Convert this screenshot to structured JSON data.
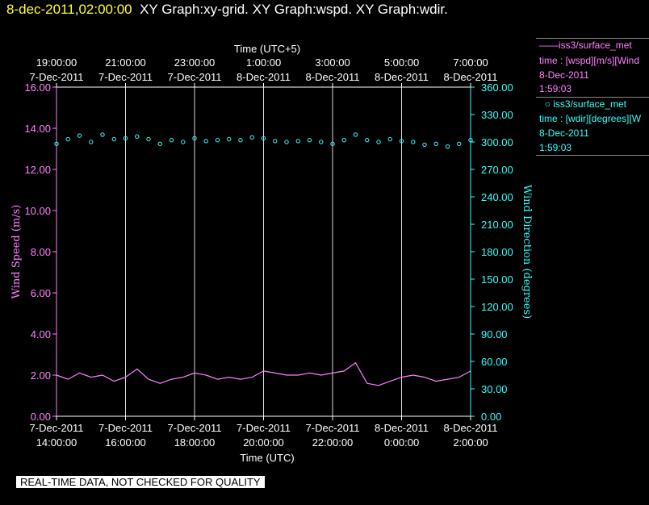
{
  "header": {
    "timestamp": "8-dec-2011,02:00:00",
    "graphs": "XY Graph:xy-grid.  XY Graph:wspd.  XY Graph:wdir."
  },
  "banner": "REAL-TIME DATA, NOT CHECKED FOR QUALITY",
  "legend": {
    "wspd": {
      "line_label": "iss3/surface_met",
      "desc": "time : [wspd][m/s][Wind",
      "date": "8-Dec-2011",
      "time": "1:59:03"
    },
    "wdir": {
      "marker_label": "iss3/surface_met",
      "desc": "time : [wdir][degrees][W",
      "date": "8-Dec-2011",
      "time": "1:59:03"
    }
  },
  "colors": {
    "wspd": "#ff80ff",
    "wdir": "#33ffff",
    "grid": "#ffffff",
    "axis_text": "#ffffff"
  },
  "chart_data": {
    "type": "line",
    "title_top_axis": "Time (UTC+5)",
    "xlabel": "Time (UTC)",
    "ylabel_left": "Wind Speed (m/s)",
    "ylabel_right": "Wind Direction (degrees)",
    "xlim": [
      "2011-12-07T14:00:00",
      "2011-12-08T02:00:00"
    ],
    "ylim_left": [
      0,
      16
    ],
    "ylim_right": [
      0,
      360
    ],
    "bottom_ticks": [
      {
        "t": "2011-12-07T14:00:00",
        "date": "7-Dec-2011",
        "time": "14:00:00"
      },
      {
        "t": "2011-12-07T16:00:00",
        "date": "7-Dec-2011",
        "time": "16:00:00"
      },
      {
        "t": "2011-12-07T18:00:00",
        "date": "7-Dec-2011",
        "time": "18:00:00"
      },
      {
        "t": "2011-12-07T20:00:00",
        "date": "7-Dec-2011",
        "time": "20:00:00"
      },
      {
        "t": "2011-12-07T22:00:00",
        "date": "7-Dec-2011",
        "time": "22:00:00"
      },
      {
        "t": "2011-12-08T00:00:00",
        "date": "8-Dec-2011",
        "time": "0:00:00"
      },
      {
        "t": "2011-12-08T02:00:00",
        "date": "8-Dec-2011",
        "time": "2:00:00"
      }
    ],
    "top_ticks": [
      {
        "t": "2011-12-07T14:00:00",
        "time": "19:00:00",
        "date": "7-Dec-2011"
      },
      {
        "t": "2011-12-07T16:00:00",
        "time": "21:00:00",
        "date": "7-Dec-2011"
      },
      {
        "t": "2011-12-07T18:00:00",
        "time": "23:00:00",
        "date": "7-Dec-2011"
      },
      {
        "t": "2011-12-07T20:00:00",
        "time": "1:00:00",
        "date": "8-Dec-2011"
      },
      {
        "t": "2011-12-07T22:00:00",
        "time": "3:00:00",
        "date": "8-Dec-2011"
      },
      {
        "t": "2011-12-08T00:00:00",
        "time": "5:00:00",
        "date": "8-Dec-2011"
      },
      {
        "t": "2011-12-08T02:00:00",
        "time": "7:00:00",
        "date": "8-Dec-2011"
      }
    ],
    "yticks_left": [
      "0.00",
      "2.00",
      "4.00",
      "6.00",
      "8.00",
      "10.00",
      "12.00",
      "14.00",
      "16.00"
    ],
    "yticks_right": [
      "0.00",
      "30.00",
      "60.00",
      "90.00",
      "120.00",
      "150.00",
      "180.00",
      "210.00",
      "240.00",
      "270.00",
      "300.00",
      "330.00",
      "360.00"
    ],
    "grid": "vertical",
    "series": [
      {
        "name": "iss3/surface_met",
        "quantity": "wspd",
        "axis": "left",
        "style": "line",
        "points": [
          [
            "2011-12-07T14:00:00",
            2.0
          ],
          [
            "2011-12-07T14:20:00",
            1.8
          ],
          [
            "2011-12-07T14:40:00",
            2.1
          ],
          [
            "2011-12-07T15:00:00",
            1.9
          ],
          [
            "2011-12-07T15:20:00",
            2.0
          ],
          [
            "2011-12-07T15:40:00",
            1.7
          ],
          [
            "2011-12-07T16:00:00",
            1.9
          ],
          [
            "2011-12-07T16:20:00",
            2.3
          ],
          [
            "2011-12-07T16:40:00",
            1.8
          ],
          [
            "2011-12-07T17:00:00",
            1.6
          ],
          [
            "2011-12-07T17:20:00",
            1.8
          ],
          [
            "2011-12-07T17:40:00",
            1.9
          ],
          [
            "2011-12-07T18:00:00",
            2.1
          ],
          [
            "2011-12-07T18:20:00",
            2.0
          ],
          [
            "2011-12-07T18:40:00",
            1.8
          ],
          [
            "2011-12-07T19:00:00",
            1.9
          ],
          [
            "2011-12-07T19:20:00",
            1.8
          ],
          [
            "2011-12-07T19:40:00",
            1.9
          ],
          [
            "2011-12-07T20:00:00",
            2.2
          ],
          [
            "2011-12-07T20:20:00",
            2.1
          ],
          [
            "2011-12-07T20:40:00",
            2.0
          ],
          [
            "2011-12-07T21:00:00",
            2.0
          ],
          [
            "2011-12-07T21:20:00",
            2.1
          ],
          [
            "2011-12-07T21:40:00",
            2.0
          ],
          [
            "2011-12-07T22:00:00",
            2.1
          ],
          [
            "2011-12-07T22:20:00",
            2.2
          ],
          [
            "2011-12-07T22:40:00",
            2.6
          ],
          [
            "2011-12-07T23:00:00",
            1.6
          ],
          [
            "2011-12-07T23:20:00",
            1.5
          ],
          [
            "2011-12-07T23:40:00",
            1.7
          ],
          [
            "2011-12-08T00:00:00",
            1.9
          ],
          [
            "2011-12-08T00:20:00",
            2.0
          ],
          [
            "2011-12-08T00:40:00",
            1.9
          ],
          [
            "2011-12-08T01:00:00",
            1.7
          ],
          [
            "2011-12-08T01:20:00",
            1.8
          ],
          [
            "2011-12-08T01:40:00",
            1.9
          ],
          [
            "2011-12-08T02:00:00",
            2.2
          ]
        ]
      },
      {
        "name": "iss3/surface_met",
        "quantity": "wdir",
        "axis": "right",
        "style": "scatter",
        "points": [
          [
            "2011-12-07T14:00:00",
            298
          ],
          [
            "2011-12-07T14:20:00",
            303
          ],
          [
            "2011-12-07T14:40:00",
            307
          ],
          [
            "2011-12-07T15:00:00",
            300
          ],
          [
            "2011-12-07T15:20:00",
            308
          ],
          [
            "2011-12-07T15:40:00",
            303
          ],
          [
            "2011-12-07T16:00:00",
            304
          ],
          [
            "2011-12-07T16:20:00",
            306
          ],
          [
            "2011-12-07T16:40:00",
            303
          ],
          [
            "2011-12-07T17:00:00",
            298
          ],
          [
            "2011-12-07T17:20:00",
            302
          ],
          [
            "2011-12-07T17:40:00",
            300
          ],
          [
            "2011-12-07T18:00:00",
            304
          ],
          [
            "2011-12-07T18:20:00",
            301
          ],
          [
            "2011-12-07T18:40:00",
            302
          ],
          [
            "2011-12-07T19:00:00",
            303
          ],
          [
            "2011-12-07T19:20:00",
            302
          ],
          [
            "2011-12-07T19:40:00",
            305
          ],
          [
            "2011-12-07T20:00:00",
            304
          ],
          [
            "2011-12-07T20:20:00",
            301
          ],
          [
            "2011-12-07T20:40:00",
            300
          ],
          [
            "2011-12-07T21:00:00",
            301
          ],
          [
            "2011-12-07T21:20:00",
            302
          ],
          [
            "2011-12-07T21:40:00",
            300
          ],
          [
            "2011-12-07T22:00:00",
            298
          ],
          [
            "2011-12-07T22:20:00",
            302
          ],
          [
            "2011-12-07T22:40:00",
            308
          ],
          [
            "2011-12-07T23:00:00",
            302
          ],
          [
            "2011-12-07T23:20:00",
            300
          ],
          [
            "2011-12-07T23:40:00",
            303
          ],
          [
            "2011-12-08T00:00:00",
            301
          ],
          [
            "2011-12-08T00:20:00",
            300
          ],
          [
            "2011-12-08T00:40:00",
            297
          ],
          [
            "2011-12-08T01:00:00",
            298
          ],
          [
            "2011-12-08T01:20:00",
            295
          ],
          [
            "2011-12-08T01:40:00",
            298
          ],
          [
            "2011-12-08T02:00:00",
            302
          ]
        ]
      }
    ]
  }
}
